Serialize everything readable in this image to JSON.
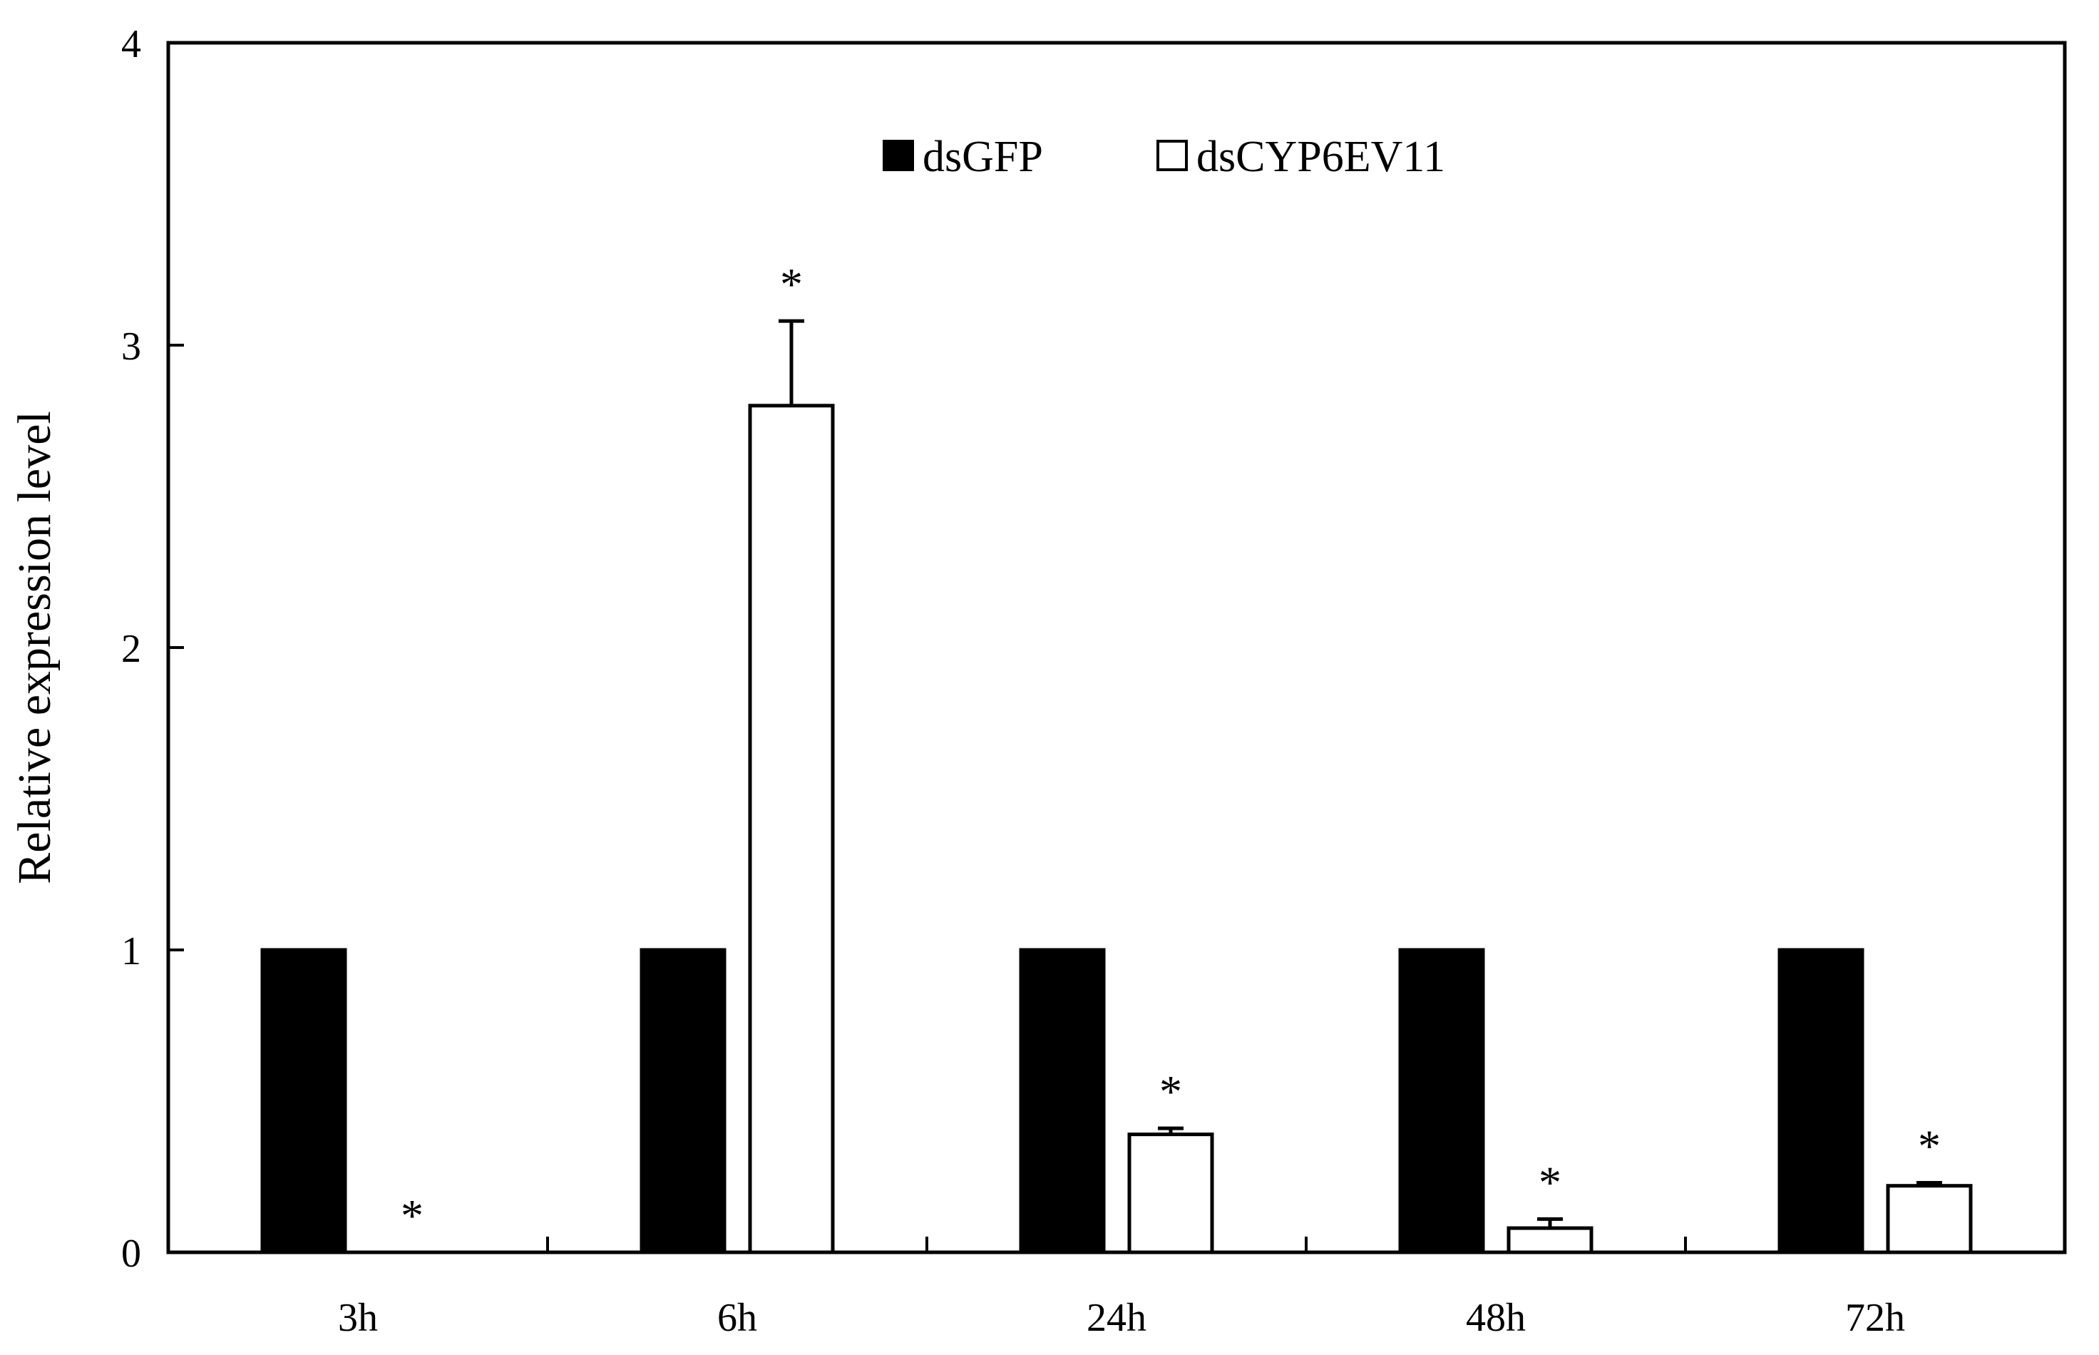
{
  "chart_data": {
    "type": "bar",
    "categories": [
      "3h",
      "6h",
      "24h",
      "48h",
      "72h"
    ],
    "series": [
      {
        "name": "dsGFP",
        "values": [
          1,
          1,
          1,
          1,
          1
        ],
        "errors": [
          0,
          0,
          0,
          0,
          0
        ],
        "color": "#000000",
        "fill": "#000000"
      },
      {
        "name": "dsCYP6EV11",
        "values": [
          0,
          2.8,
          0.39,
          0.08,
          0.22
        ],
        "errors": [
          0,
          0.28,
          0.02,
          0.03,
          0.01
        ],
        "color": "#000000",
        "fill": "#ffffff"
      }
    ],
    "significance": [
      {
        "category": "3h",
        "series": "dsCYP6EV11",
        "mark": "*"
      },
      {
        "category": "6h",
        "series": "dsCYP6EV11",
        "mark": "*"
      },
      {
        "category": "24h",
        "series": "dsCYP6EV11",
        "mark": "*"
      },
      {
        "category": "48h",
        "series": "dsCYP6EV11",
        "mark": "*"
      },
      {
        "category": "72h",
        "series": "dsCYP6EV11",
        "mark": "*"
      }
    ],
    "title": "",
    "xlabel": "",
    "ylabel": "Relative expression level",
    "ylim": [
      0,
      4
    ],
    "yticks": [
      0,
      1,
      2,
      3,
      4
    ],
    "grid": false,
    "legend_position": "top-center"
  }
}
